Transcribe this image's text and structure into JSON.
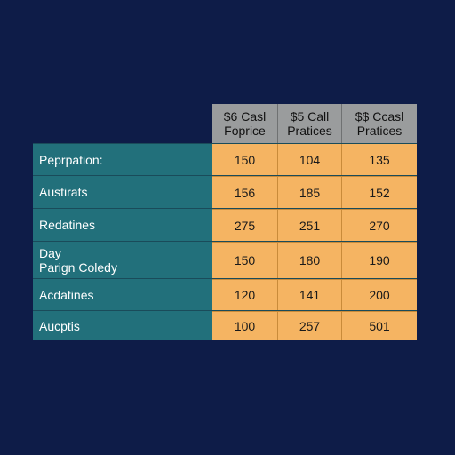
{
  "table": {
    "headers": [
      [
        "$6 Casl",
        "Foprice"
      ],
      [
        "$5 Call",
        "Pratices"
      ],
      [
        "$$ Ccasl",
        "Pratices"
      ]
    ],
    "rows": [
      {
        "label": [
          "Peprpation:"
        ],
        "values": [
          "150",
          "104",
          "135"
        ]
      },
      {
        "label": [
          "Austirats"
        ],
        "values": [
          "156",
          "185",
          "152"
        ]
      },
      {
        "label": [
          "Redatines"
        ],
        "values": [
          "275",
          "251",
          "270"
        ]
      },
      {
        "label": [
          "Day",
          "Parign Coledy"
        ],
        "values": [
          "150",
          "180",
          "190"
        ]
      },
      {
        "label": [
          "Acdatines"
        ],
        "values": [
          "120",
          "141",
          "200"
        ]
      },
      {
        "label": [
          "Aucptis"
        ],
        "values": [
          "100",
          "257",
          "501"
        ]
      }
    ]
  }
}
